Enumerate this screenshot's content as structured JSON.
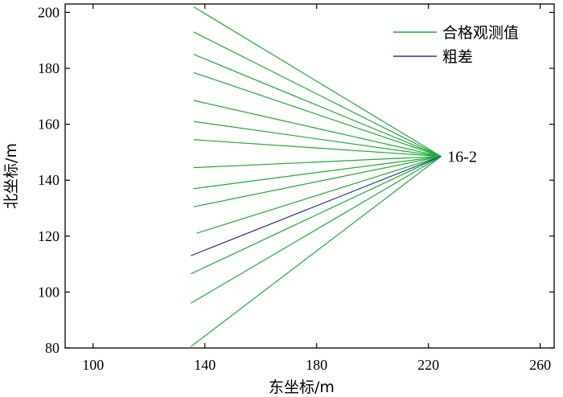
{
  "chart_data": {
    "type": "line",
    "xlabel": "东坐标/m",
    "ylabel": "北坐标/m",
    "xlim": [
      90,
      265
    ],
    "ylim": [
      80,
      203
    ],
    "xticks": [
      100,
      140,
      180,
      220,
      260
    ],
    "yticks": [
      80,
      100,
      120,
      140,
      160,
      180,
      200
    ],
    "grid": false,
    "legend_position": "top-right",
    "colors": {
      "accepted": "#22a83a",
      "gross": "#2f3a8f",
      "axis": "#000000"
    },
    "station": {
      "label": "16-2",
      "x": 224.5,
      "y": 148.5
    },
    "series": [
      {
        "name": "合格观测值",
        "segments": [
          {
            "x": [
              136,
              224.5
            ],
            "y": [
              202,
              148.5
            ]
          },
          {
            "x": [
              136,
              224.5
            ],
            "y": [
              193,
              148.5
            ]
          },
          {
            "x": [
              136,
              224.5
            ],
            "y": [
              185,
              148.5
            ]
          },
          {
            "x": [
              136,
              224.5
            ],
            "y": [
              178.5,
              148.5
            ]
          },
          {
            "x": [
              136,
              224.5
            ],
            "y": [
              168.5,
              148.5
            ]
          },
          {
            "x": [
              136,
              224.5
            ],
            "y": [
              161,
              148.5
            ]
          },
          {
            "x": [
              136,
              224.5
            ],
            "y": [
              154.5,
              148.5
            ]
          },
          {
            "x": [
              136,
              224.5
            ],
            "y": [
              144.5,
              148.5
            ]
          },
          {
            "x": [
              136,
              224.5
            ],
            "y": [
              137,
              148.5
            ]
          },
          {
            "x": [
              136,
              224.5
            ],
            "y": [
              130.5,
              148.5
            ]
          },
          {
            "x": [
              137,
              224.5
            ],
            "y": [
              121,
              148.5
            ]
          },
          {
            "x": [
              135,
              224.5
            ],
            "y": [
              106.5,
              148.5
            ]
          },
          {
            "x": [
              135,
              224.5
            ],
            "y": [
              96,
              148.5
            ]
          },
          {
            "x": [
              135,
              224.5
            ],
            "y": [
              80.5,
              148.5
            ]
          }
        ]
      },
      {
        "name": "粗差",
        "segments": [
          {
            "x": [
              135,
              224.5
            ],
            "y": [
              113,
              148.5
            ]
          }
        ]
      }
    ]
  }
}
